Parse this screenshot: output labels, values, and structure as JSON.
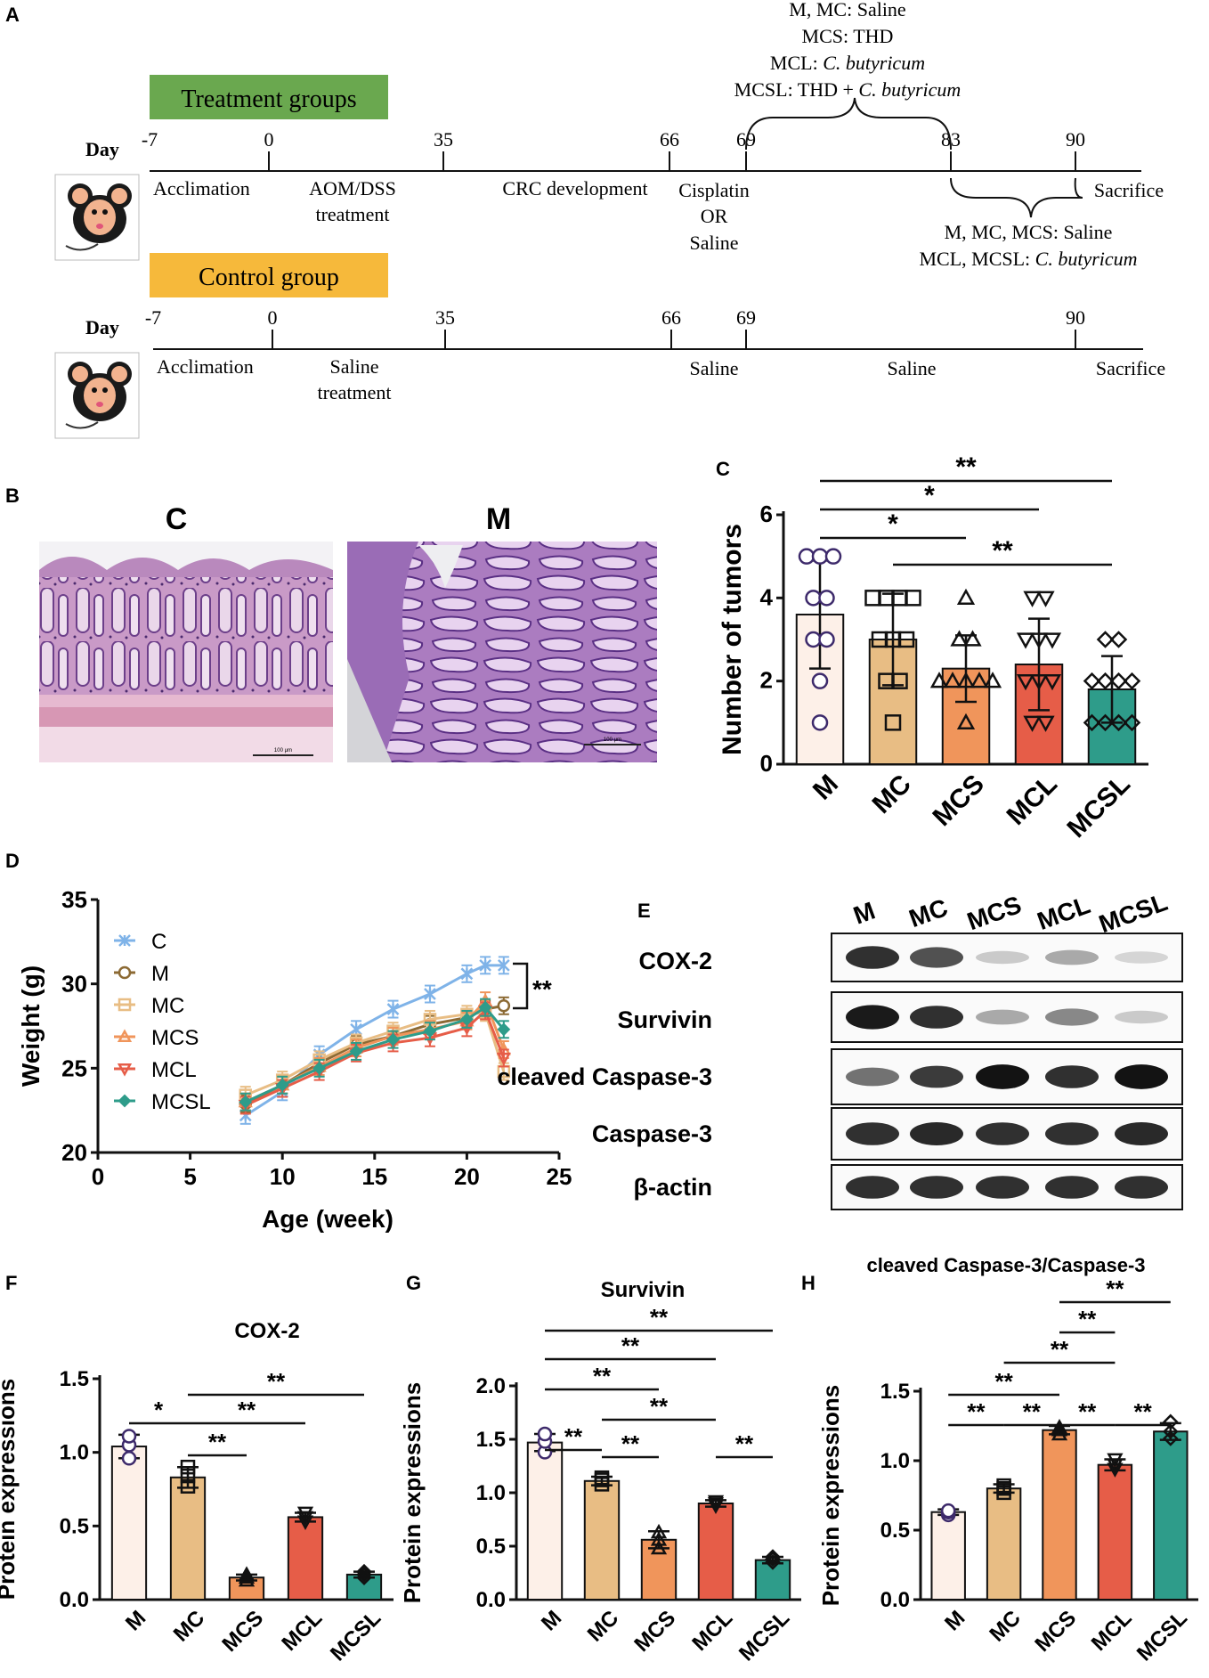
{
  "panel_labels": {
    "a": "A",
    "b": "B",
    "c": "C",
    "d": "D",
    "e": "E",
    "f": "F",
    "g": "G",
    "h": "H"
  },
  "timeline": {
    "day_label": "Day",
    "treatment_group_label": "Treatment groups",
    "control_group_label": "Control group",
    "treatment_group_color": "#6aa84f",
    "control_group_color": "#f6b93b",
    "days_treatment": [
      "-7",
      "0",
      "35",
      "66",
      "69",
      "83",
      "90"
    ],
    "days_control": [
      "-7",
      "0",
      "35",
      "66",
      "69",
      "90"
    ],
    "treatment_phases": {
      "acclimation": "Acclimation",
      "aom_dss_1": "AOM/DSS",
      "aom_dss_2": "treatment",
      "crc": "CRC development",
      "cis_1": "Cisplatin",
      "cis_2": "OR",
      "cis_3": "Saline",
      "sacrifice": "Sacrifice"
    },
    "control_phases": {
      "acclimation": "Acclimation",
      "saline_1": "Saline",
      "saline_2": "treatment",
      "saline_69": "Saline",
      "saline_mid": "Saline",
      "sacrifice": "Sacrifice"
    },
    "top_brace_lines": [
      {
        "plain": "M, MC: Saline",
        "italic": ""
      },
      {
        "plain": "MCS: THD",
        "italic": ""
      },
      {
        "plain": "MCL: ",
        "italic": "C. butyricum"
      },
      {
        "plain": "MCSL: THD + ",
        "italic": "C. butyricum"
      }
    ],
    "bottom_brace_lines": [
      {
        "plain": "M, MC, MCS: Saline",
        "italic": ""
      },
      {
        "plain": "MCL, MCSL: ",
        "italic": "C. butyricum"
      }
    ]
  },
  "histology": {
    "left_label": "C",
    "right_label": "M",
    "left_scale": "100 μm",
    "right_scale": "100 μm"
  },
  "chart_data": [
    {
      "id": "C",
      "type": "bar",
      "ylabel": "Number of tumors",
      "ylim": [
        0,
        6
      ],
      "yticks": [
        "0",
        "2",
        "4",
        "6"
      ],
      "categories": [
        "M",
        "MC",
        "MCS",
        "MCL",
        "MCSL"
      ],
      "values": [
        3.6,
        3.0,
        2.3,
        2.4,
        1.8
      ],
      "errors": [
        1.3,
        1.1,
        0.8,
        1.1,
        0.8
      ],
      "points": [
        [
          1,
          2,
          3,
          3,
          4,
          4,
          5,
          5,
          5
        ],
        [
          1,
          2,
          2,
          3,
          3,
          3,
          4,
          4,
          4,
          4
        ],
        [
          1,
          2,
          2,
          2,
          2,
          2,
          3,
          3,
          4
        ],
        [
          1,
          1,
          2,
          2,
          2,
          3,
          3,
          3,
          4,
          4
        ],
        [
          1,
          1,
          1,
          1,
          2,
          2,
          2,
          2,
          3,
          3
        ]
      ],
      "colors": [
        "#fdf0e8",
        "#e8bd84",
        "#f0955b",
        "#e65d48",
        "#2e9c8a"
      ],
      "significance": [
        {
          "from": 0,
          "to": 4,
          "label": "**"
        },
        {
          "from": 0,
          "to": 3,
          "label": "*"
        },
        {
          "from": 0,
          "to": 2,
          "label": "*"
        },
        {
          "from": 1,
          "to": 4,
          "label": "**"
        }
      ]
    },
    {
      "id": "D",
      "type": "line",
      "xlabel": "Age (week)",
      "ylabel": "Weight (g)",
      "xlim": [
        0,
        25
      ],
      "ylim": [
        20,
        35
      ],
      "xticks": [
        "0",
        "5",
        "10",
        "15",
        "20",
        "25"
      ],
      "yticks": [
        "20",
        "25",
        "30",
        "35"
      ],
      "x": [
        8,
        10,
        12,
        14,
        16,
        18,
        20,
        21,
        22
      ],
      "series": [
        {
          "name": "C",
          "color": "#7fb3e8",
          "marker": "x",
          "values": [
            22.2,
            23.6,
            25.8,
            27.3,
            28.5,
            29.4,
            30.6,
            31.1,
            31.1
          ],
          "err": 0.5
        },
        {
          "name": "M",
          "color": "#8c6a34",
          "marker": "o",
          "values": [
            22.9,
            24.0,
            25.3,
            26.4,
            26.9,
            27.6,
            28.0,
            28.5,
            28.7
          ],
          "err": 0.5
        },
        {
          "name": "MC",
          "color": "#e8bd84",
          "marker": "s",
          "values": [
            23.4,
            24.3,
            25.5,
            26.5,
            27.2,
            27.9,
            28.2,
            28.3,
            24.8
          ],
          "err": 0.5
        },
        {
          "name": "MCS",
          "color": "#f0955b",
          "marker": "^",
          "values": [
            23.0,
            24.0,
            25.1,
            26.2,
            26.9,
            27.3,
            27.8,
            29.0,
            26.1
          ],
          "err": 0.5
        },
        {
          "name": "MCL",
          "color": "#e65d48",
          "marker": "v",
          "values": [
            22.8,
            23.8,
            24.8,
            25.9,
            26.5,
            26.8,
            27.4,
            28.4,
            25.6
          ],
          "err": 0.5
        },
        {
          "name": "MCSL",
          "color": "#2e9c8a",
          "marker": "d",
          "values": [
            23.0,
            24.0,
            25.0,
            26.0,
            26.7,
            27.2,
            27.9,
            28.6,
            27.3
          ],
          "err": 0.5
        }
      ],
      "bracket_label": "**"
    },
    {
      "id": "F",
      "type": "bar",
      "title": "COX-2",
      "ylabel": "Protein expressions",
      "ylim": [
        0,
        1.5
      ],
      "yticks": [
        "0.0",
        "0.5",
        "1.0",
        "1.5"
      ],
      "categories": [
        "M",
        "MC",
        "MCS",
        "MCL",
        "MCSL"
      ],
      "values": [
        1.04,
        0.83,
        0.15,
        0.56,
        0.17
      ],
      "errors": [
        0.08,
        0.07,
        0.02,
        0.03,
        0.02
      ],
      "points": [
        [
          0.96,
          1.05,
          1.11
        ],
        [
          0.77,
          0.84,
          0.9
        ],
        [
          0.13,
          0.15,
          0.17
        ],
        [
          0.53,
          0.56,
          0.59
        ],
        [
          0.15,
          0.17,
          0.19
        ]
      ],
      "colors": [
        "#fdf0e8",
        "#e8bd84",
        "#f0955b",
        "#e65d48",
        "#2e9c8a"
      ],
      "significance": [
        {
          "from": 0,
          "to": 1,
          "label": "*"
        },
        {
          "from": 1,
          "to": 2,
          "label": "**"
        },
        {
          "from": 1,
          "to": 3,
          "label": "**"
        },
        {
          "from": 1,
          "to": 4,
          "label": "**"
        }
      ]
    },
    {
      "id": "G",
      "type": "bar",
      "title": "Survivin",
      "ylabel": "Protein expressions",
      "ylim": [
        0,
        2.0
      ],
      "yticks": [
        "0.0",
        "0.5",
        "1.0",
        "1.5",
        "2.0"
      ],
      "categories": [
        "M",
        "MC",
        "MCS",
        "MCL",
        "MCSL"
      ],
      "values": [
        1.47,
        1.11,
        0.56,
        0.9,
        0.37
      ],
      "errors": [
        0.08,
        0.04,
        0.08,
        0.03,
        0.03
      ],
      "points": [
        [
          1.38,
          1.48,
          1.55
        ],
        [
          1.08,
          1.12,
          1.14
        ],
        [
          0.48,
          0.56,
          0.63
        ],
        [
          0.88,
          0.9,
          0.92
        ],
        [
          0.35,
          0.38,
          0.4
        ]
      ],
      "colors": [
        "#fdf0e8",
        "#e8bd84",
        "#f0955b",
        "#e65d48",
        "#2e9c8a"
      ],
      "significance": [
        {
          "from": 0,
          "to": 4,
          "label": "**"
        },
        {
          "from": 0,
          "to": 3,
          "label": "**"
        },
        {
          "from": 0,
          "to": 2,
          "label": "**"
        },
        {
          "from": 0,
          "to": 1,
          "label": "**"
        },
        {
          "from": 1,
          "to": 3,
          "label": "**"
        },
        {
          "from": 1,
          "to": 2,
          "label": "**"
        },
        {
          "from": 3,
          "to": 4,
          "label": "**"
        }
      ]
    },
    {
      "id": "H",
      "type": "bar",
      "title": "cleaved Caspase-3/Caspase-3",
      "ylabel": "Protein expressions",
      "ylim": [
        0,
        1.5
      ],
      "yticks": [
        "0.0",
        "0.5",
        "1.0",
        "1.5"
      ],
      "categories": [
        "M",
        "MC",
        "MCS",
        "MCL",
        "MCSL"
      ],
      "values": [
        0.63,
        0.8,
        1.22,
        0.97,
        1.21
      ],
      "errors": [
        0.02,
        0.03,
        0.03,
        0.04,
        0.06
      ],
      "points": [
        [
          0.61,
          0.63,
          0.64
        ],
        [
          0.77,
          0.8,
          0.82
        ],
        [
          1.19,
          1.22,
          1.24
        ],
        [
          0.94,
          0.97,
          1.01
        ],
        [
          1.16,
          1.21,
          1.28
        ]
      ],
      "colors": [
        "#fdf0e8",
        "#e8bd84",
        "#f0955b",
        "#e65d48",
        "#2e9c8a"
      ],
      "significance": [
        {
          "from": 2,
          "to": 4,
          "label": "**"
        },
        {
          "from": 2,
          "to": 3,
          "label": "**"
        },
        {
          "from": 1,
          "to": 3,
          "label": "**"
        },
        {
          "from": 0,
          "to": 2,
          "label": "**"
        },
        {
          "from": 0,
          "to": 1,
          "label": "**"
        },
        {
          "from": 1,
          "to": 2,
          "label": "**"
        },
        {
          "from": 2,
          "to": 3,
          "label": "**"
        },
        {
          "from": 3,
          "to": 4,
          "label": "**"
        }
      ]
    }
  ],
  "western": {
    "lanes": [
      "M",
      "MC",
      "MCS",
      "MCL",
      "MCSL"
    ],
    "rows": [
      {
        "label": "COX-2",
        "intensity": [
          0.85,
          0.7,
          0.15,
          0.3,
          0.1
        ]
      },
      {
        "label": "Survivin",
        "intensity": [
          0.95,
          0.85,
          0.3,
          0.45,
          0.15
        ]
      },
      {
        "label": "cleaved Caspase-3",
        "intensity": [
          0.55,
          0.8,
          0.98,
          0.85,
          0.98
        ]
      },
      {
        "label": "Caspase-3",
        "intensity": [
          0.85,
          0.88,
          0.85,
          0.85,
          0.88
        ]
      },
      {
        "label": "β-actin",
        "intensity": [
          0.85,
          0.85,
          0.85,
          0.85,
          0.85
        ]
      }
    ]
  }
}
